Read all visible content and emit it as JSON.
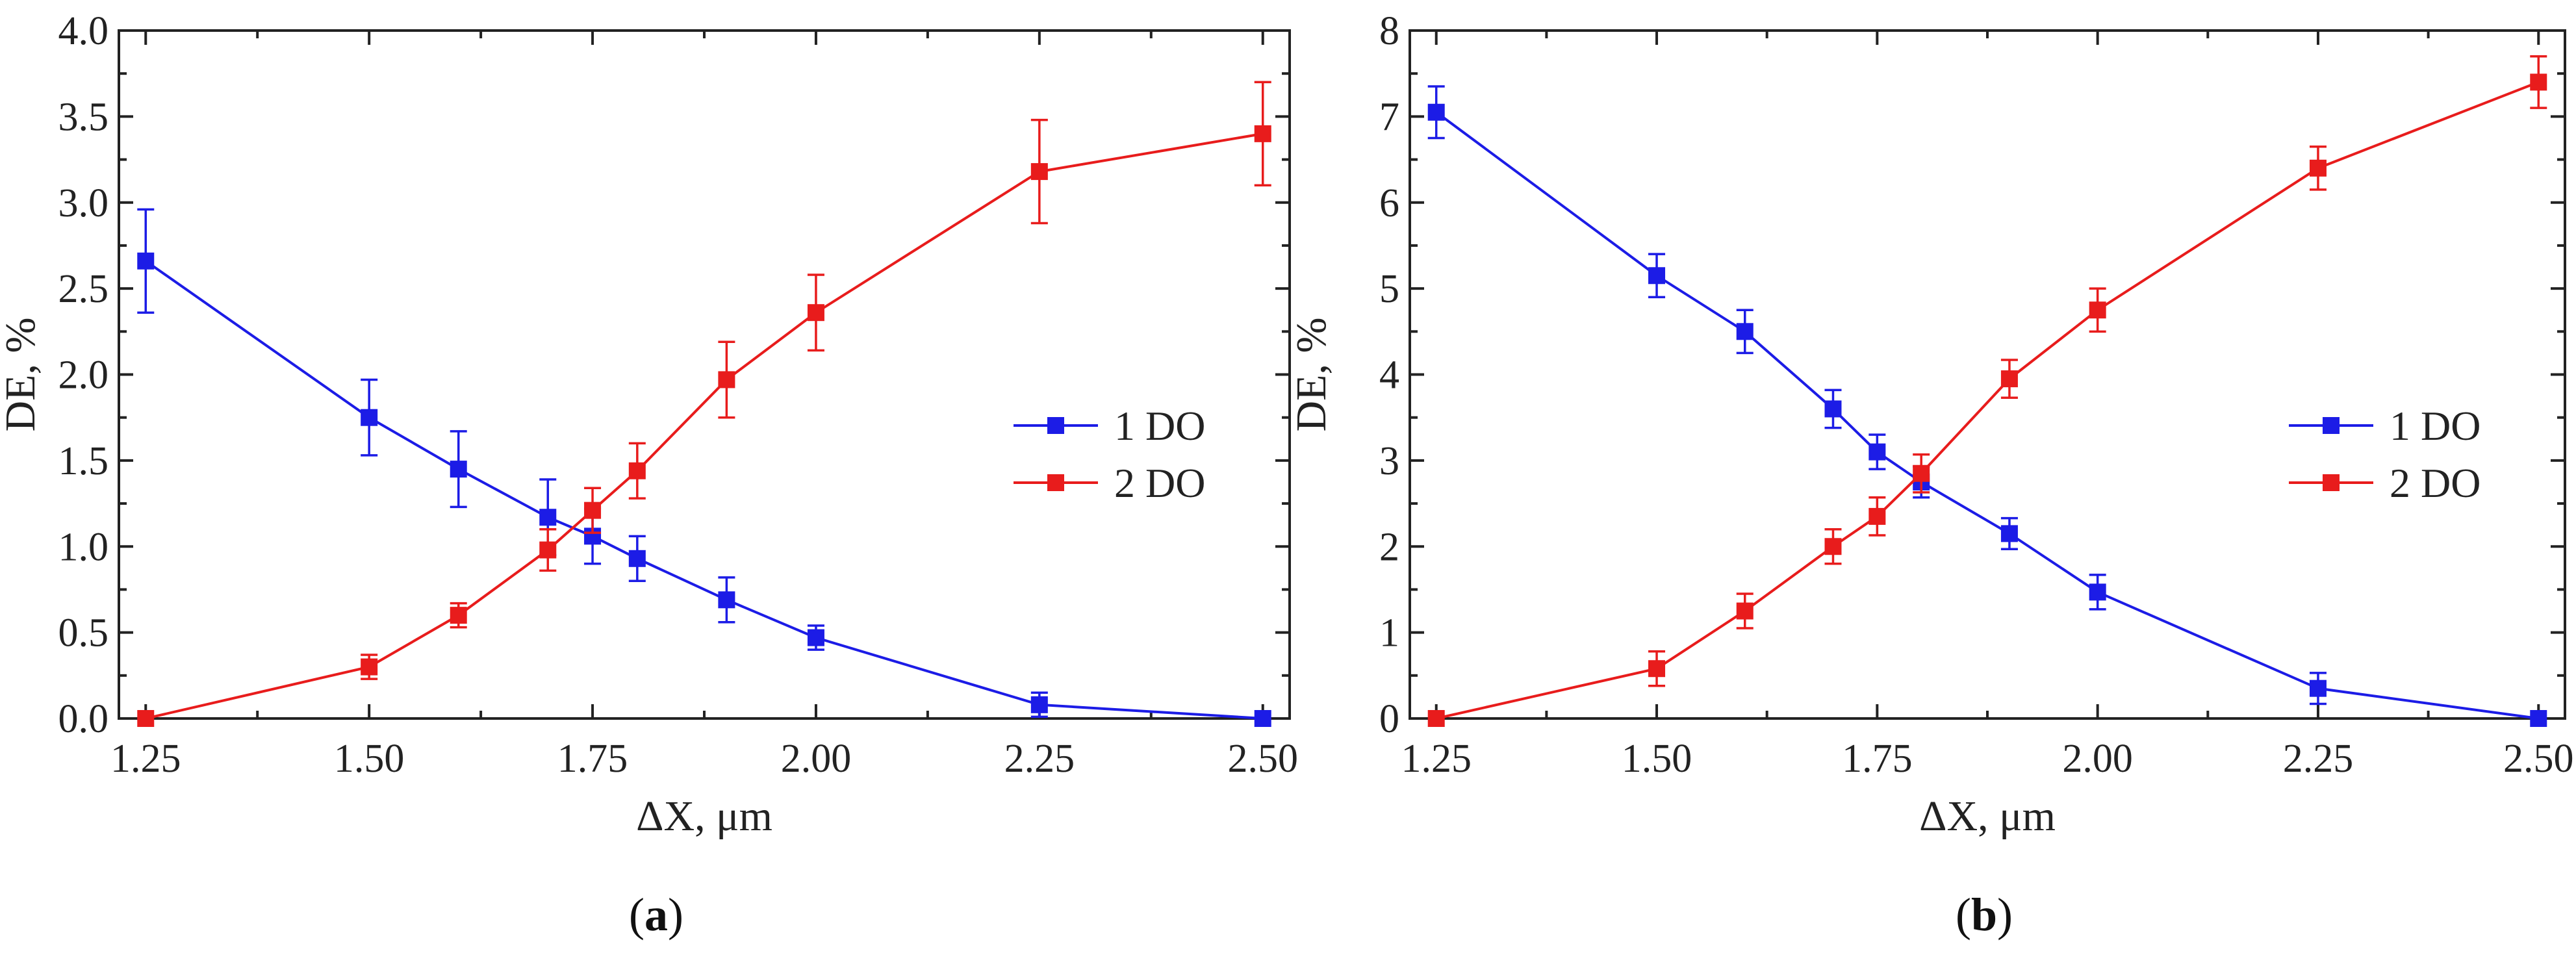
{
  "chart_data": [
    {
      "type": "line",
      "panel": "a",
      "panel_label": "a",
      "x": [
        1.25,
        1.5,
        1.6,
        1.7,
        1.75,
        1.8,
        1.9,
        2.0,
        2.25,
        2.5
      ],
      "xticks": [
        "1.25",
        "1.50",
        "1.75",
        "2.00",
        "2.25",
        "2.50"
      ],
      "xtick_values": [
        1.25,
        1.5,
        1.75,
        2.0,
        2.25,
        2.5
      ],
      "xlim": [
        1.22,
        2.53
      ],
      "ylim": [
        0,
        4.0
      ],
      "yticks": [
        "0.0",
        "0.5",
        "1.0",
        "1.5",
        "2.0",
        "2.5",
        "3.0",
        "3.5",
        "4.0"
      ],
      "ytick_values": [
        0,
        0.5,
        1.0,
        1.5,
        2.0,
        2.5,
        3.0,
        3.5,
        4.0
      ],
      "xlabel": "ΔX, μm",
      "ylabel": "DE, %",
      "legend_position": "center-right",
      "series": [
        {
          "name": "1 DO",
          "color": "#1c1ce6",
          "values": [
            2.66,
            1.75,
            1.45,
            1.17,
            1.06,
            0.93,
            0.69,
            0.47,
            0.08,
            0.0
          ],
          "errors": [
            0.3,
            0.22,
            0.22,
            0.22,
            0.16,
            0.13,
            0.13,
            0.07,
            0.07,
            0.0
          ]
        },
        {
          "name": "2 DO",
          "color": "#e81c1c",
          "values": [
            0.0,
            0.3,
            0.6,
            0.98,
            1.21,
            1.44,
            1.97,
            2.36,
            3.18,
            3.4
          ],
          "errors": [
            0.0,
            0.07,
            0.07,
            0.12,
            0.13,
            0.16,
            0.22,
            0.22,
            0.3,
            0.3
          ]
        }
      ]
    },
    {
      "type": "line",
      "panel": "b",
      "panel_label": "b",
      "x": [
        1.25,
        1.5,
        1.6,
        1.7,
        1.75,
        1.8,
        1.9,
        2.0,
        2.25,
        2.5
      ],
      "xticks": [
        "1.25",
        "1.50",
        "1.75",
        "2.00",
        "2.25",
        "2.50"
      ],
      "xtick_values": [
        1.25,
        1.5,
        1.75,
        2.0,
        2.25,
        2.5
      ],
      "xlim": [
        1.22,
        2.53
      ],
      "ylim": [
        0,
        8
      ],
      "yticks": [
        "0",
        "1",
        "2",
        "3",
        "4",
        "5",
        "6",
        "7",
        "8"
      ],
      "ytick_values": [
        0,
        1,
        2,
        3,
        4,
        5,
        6,
        7,
        8
      ],
      "xlabel": "ΔX, μm",
      "ylabel": "DE, %",
      "legend_position": "center-right",
      "series": [
        {
          "name": "1 DO",
          "color": "#1c1ce6",
          "values": [
            7.05,
            5.15,
            4.5,
            3.6,
            3.1,
            2.75,
            2.15,
            1.47,
            0.35,
            0.0
          ],
          "errors": [
            0.3,
            0.25,
            0.25,
            0.22,
            0.2,
            0.18,
            0.18,
            0.2,
            0.18,
            0.0
          ]
        },
        {
          "name": "2 DO",
          "color": "#e81c1c",
          "values": [
            0.0,
            0.58,
            1.25,
            2.0,
            2.35,
            2.85,
            3.95,
            4.75,
            6.4,
            7.4
          ],
          "errors": [
            0.0,
            0.2,
            0.2,
            0.2,
            0.22,
            0.22,
            0.22,
            0.25,
            0.25,
            0.3
          ]
        }
      ]
    }
  ]
}
